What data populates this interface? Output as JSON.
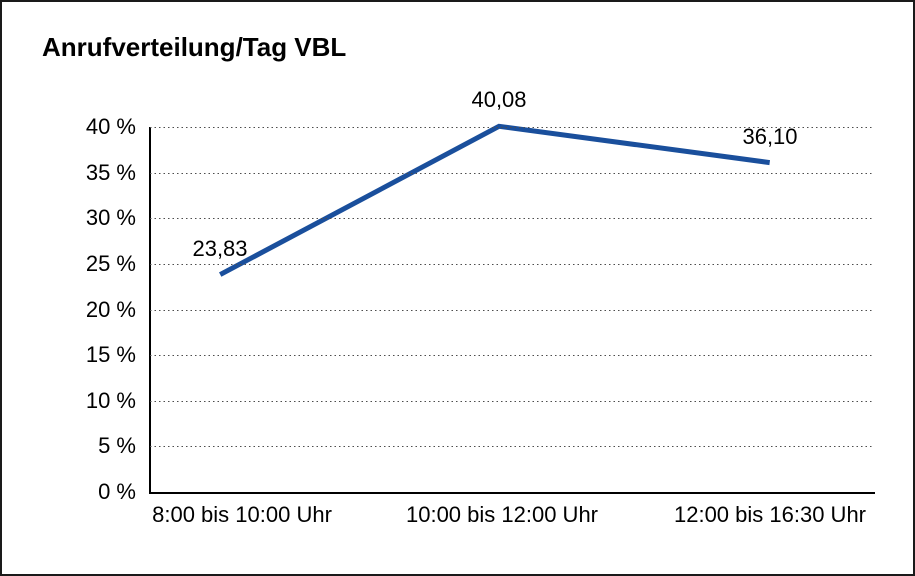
{
  "title": "Anrufverteilung/Tag VBL",
  "chart_data": {
    "type": "line",
    "title": "Anrufverteilung/Tag VBL",
    "categories": [
      "8:00 bis 10:00 Uhr",
      "10:00 bis 12:00 Uhr",
      "12:00 bis 16:30 Uhr"
    ],
    "values": [
      23.83,
      40.08,
      36.1
    ],
    "value_labels": [
      "23,83",
      "40,08",
      "36,10"
    ],
    "xlabel": "",
    "ylabel": "",
    "ylim": [
      0,
      40
    ],
    "y_tick_step": 5,
    "y_tick_labels": [
      "0 %",
      "5 %",
      "10 %",
      "15 %",
      "20 %",
      "25 %",
      "30 %",
      "35 %",
      "40 %"
    ],
    "grid": "horizontal-dotted",
    "legend": "none",
    "line_color": "#1A4F9C",
    "axis_color": "#000000",
    "background": "#FFFFFF"
  }
}
